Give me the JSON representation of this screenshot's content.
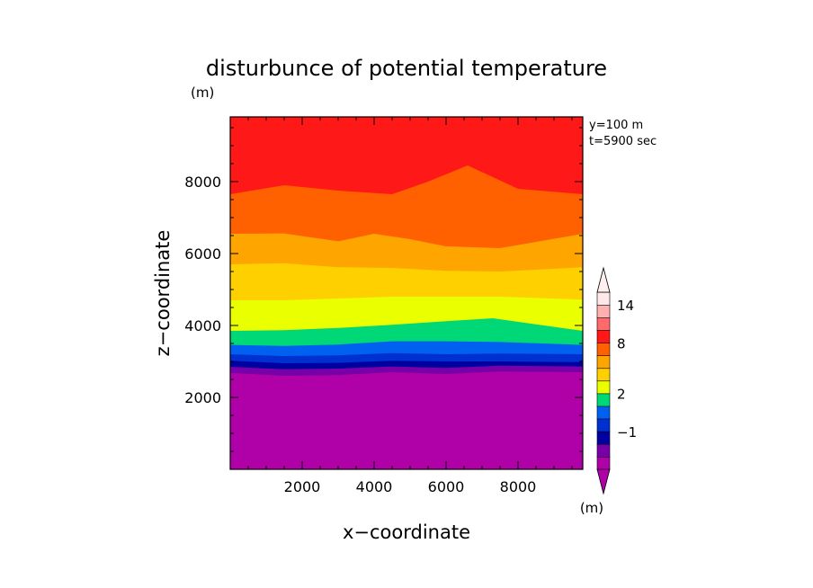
{
  "chart_data": {
    "type": "contour",
    "title": "disturbunce of potential temperature",
    "title_unit": "(m)",
    "annotations": [
      "y=100 m",
      "t=5900 sec"
    ],
    "xlabel": "x−coordinate",
    "ylabel": "z−coordinate",
    "xlim": [
      0,
      9800
    ],
    "ylim": [
      0,
      9800
    ],
    "x_ticks": [
      2000,
      4000,
      6000,
      8000
    ],
    "x_tick_labels": [
      "2000",
      "4000",
      "6000",
      "8000"
    ],
    "y_ticks": [
      2000,
      4000,
      6000,
      8000
    ],
    "y_tick_labels": [
      "2000",
      "4000",
      "6000",
      "8000"
    ],
    "contour_bands": [
      {
        "color": "#b000a8",
        "points": [
          [
            0,
            2680
          ],
          [
            1500,
            2600
          ],
          [
            3000,
            2620
          ],
          [
            4500,
            2700
          ],
          [
            6000,
            2650
          ],
          [
            7500,
            2720
          ],
          [
            9800,
            2700
          ]
        ]
      },
      {
        "color": "#7800a8",
        "points": [
          [
            0,
            2850
          ],
          [
            1500,
            2780
          ],
          [
            3000,
            2800
          ],
          [
            4500,
            2860
          ],
          [
            6000,
            2820
          ],
          [
            7500,
            2880
          ],
          [
            9800,
            2860
          ]
        ]
      },
      {
        "color": "#0000a0",
        "points": [
          [
            0,
            3020
          ],
          [
            1500,
            2950
          ],
          [
            3000,
            2960
          ],
          [
            4500,
            3020
          ],
          [
            6000,
            3000
          ],
          [
            7500,
            3000
          ],
          [
            9800,
            2980
          ]
        ]
      },
      {
        "color": "#0030d0",
        "points": [
          [
            0,
            3200
          ],
          [
            1500,
            3150
          ],
          [
            3000,
            3170
          ],
          [
            4500,
            3230
          ],
          [
            6000,
            3200
          ],
          [
            7500,
            3220
          ],
          [
            9800,
            3200
          ]
        ]
      },
      {
        "color": "#0060f0",
        "points": [
          [
            0,
            3460
          ],
          [
            1500,
            3430
          ],
          [
            3000,
            3470
          ],
          [
            4500,
            3560
          ],
          [
            6000,
            3560
          ],
          [
            7500,
            3540
          ],
          [
            9800,
            3460
          ]
        ]
      },
      {
        "color": "#00d878",
        "points": [
          [
            0,
            3850
          ],
          [
            1500,
            3870
          ],
          [
            3000,
            3930
          ],
          [
            4500,
            4020
          ],
          [
            6000,
            4120
          ],
          [
            7300,
            4200
          ],
          [
            9800,
            3850
          ]
        ]
      },
      {
        "color": "#eaff00",
        "points": [
          [
            0,
            4700
          ],
          [
            1500,
            4700
          ],
          [
            3000,
            4750
          ],
          [
            4500,
            4800
          ],
          [
            6000,
            4800
          ],
          [
            7500,
            4800
          ],
          [
            9800,
            4720
          ]
        ]
      },
      {
        "color": "#ffd000",
        "points": [
          [
            0,
            5700
          ],
          [
            1500,
            5730
          ],
          [
            3000,
            5620
          ],
          [
            4500,
            5600
          ],
          [
            6000,
            5520
          ],
          [
            7500,
            5500
          ],
          [
            9800,
            5620
          ]
        ]
      },
      {
        "color": "#ffa500",
        "points": [
          [
            0,
            6550
          ],
          [
            1500,
            6560
          ],
          [
            3000,
            6340
          ],
          [
            4000,
            6550
          ],
          [
            5000,
            6400
          ],
          [
            6000,
            6200
          ],
          [
            7500,
            6150
          ],
          [
            9800,
            6550
          ]
        ]
      },
      {
        "color": "#ff6000",
        "points": [
          [
            0,
            7650
          ],
          [
            1500,
            7900
          ],
          [
            3000,
            7750
          ],
          [
            4500,
            7650
          ],
          [
            5500,
            8000
          ],
          [
            6600,
            8450
          ],
          [
            8000,
            7800
          ],
          [
            9800,
            7650
          ]
        ]
      },
      {
        "color": "#ff1818",
        "points": [
          [
            0,
            9800
          ],
          [
            9800,
            9800
          ]
        ]
      }
    ],
    "colorbar": {
      "unit": "(m)",
      "colors": [
        "#b000a8",
        "#7800a8",
        "#0000a0",
        "#0030d0",
        "#0060f0",
        "#00d878",
        "#eaff00",
        "#ffd000",
        "#ffa500",
        "#ff6000",
        "#ff1818",
        "#ff6a6a",
        "#ffb0b0",
        "#ffe8e8"
      ],
      "labels": [
        {
          "text": "−1",
          "boundary": 3
        },
        {
          "text": "2",
          "boundary": 6
        },
        {
          "text": "8",
          "boundary": 10
        },
        {
          "text": "14",
          "boundary": 13
        }
      ]
    }
  }
}
